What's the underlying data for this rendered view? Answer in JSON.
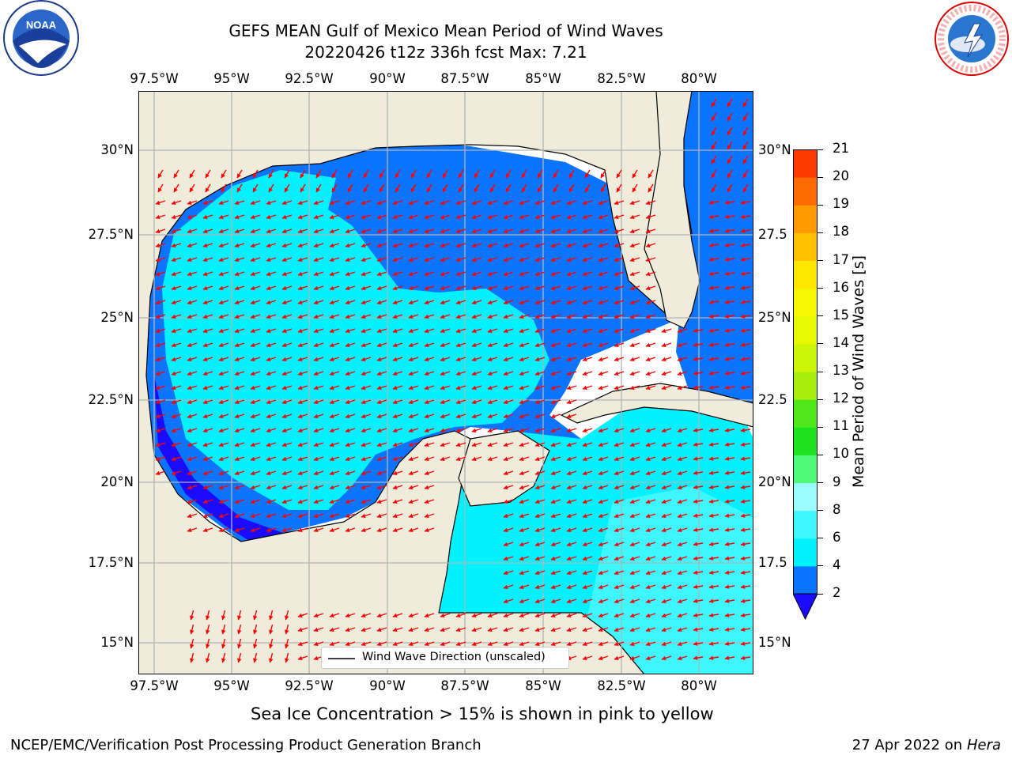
{
  "title": {
    "line1": "GEFS MEAN Gulf of Mexico Mean Period of Wind Waves",
    "line2": "20220426 t12z 336h fcst   Max: 7.21"
  },
  "axes": {
    "lon_ticks": [
      "97.5°W",
      "95°W",
      "92.5°W",
      "90°W",
      "87.5°W",
      "85°W",
      "82.5°W",
      "80°W"
    ],
    "lat_ticks": [
      "30°N",
      "27.5°N",
      "25°N",
      "22.5°N",
      "20°N",
      "17.5°N",
      "15°N"
    ],
    "lat_ticks_right": [
      "30°N",
      "27.5",
      "25°N",
      "22.5",
      "20°N",
      "17.5",
      "15°N"
    ]
  },
  "colorbar": {
    "label": "Mean Period of Wind Waves [s]",
    "tick_labels": [
      "2",
      "4",
      "6",
      "8",
      "9",
      "10",
      "11",
      "12",
      "13",
      "14",
      "15",
      "16",
      "17",
      "18",
      "19",
      "20",
      "21"
    ],
    "colors": [
      "#0a74ff",
      "#00f2ff",
      "#3ff8ff",
      "#9bfdff",
      "#4dfa7a",
      "#1de21f",
      "#4ee81a",
      "#a8ee10",
      "#cdf508",
      "#e8f800",
      "#f5f800",
      "#ffe700",
      "#ffc000",
      "#ff9a00",
      "#ff6a00",
      "#ff3a00",
      "#ff0500"
    ],
    "extend_color": "#1a0aff"
  },
  "legend": {
    "label": "Wind Wave Direction (unscaled)"
  },
  "caption": "Sea Ice Concentration > 15% is shown in pink to yellow",
  "footer": {
    "left": "NCEP/EMC/Verification Post Processing Product Generation Branch",
    "date": "27 Apr 2022 on",
    "machine": "Hera"
  },
  "logos": {
    "noaa": "NOAA",
    "nws": "NATIONAL WEATHER SERVICE"
  }
}
